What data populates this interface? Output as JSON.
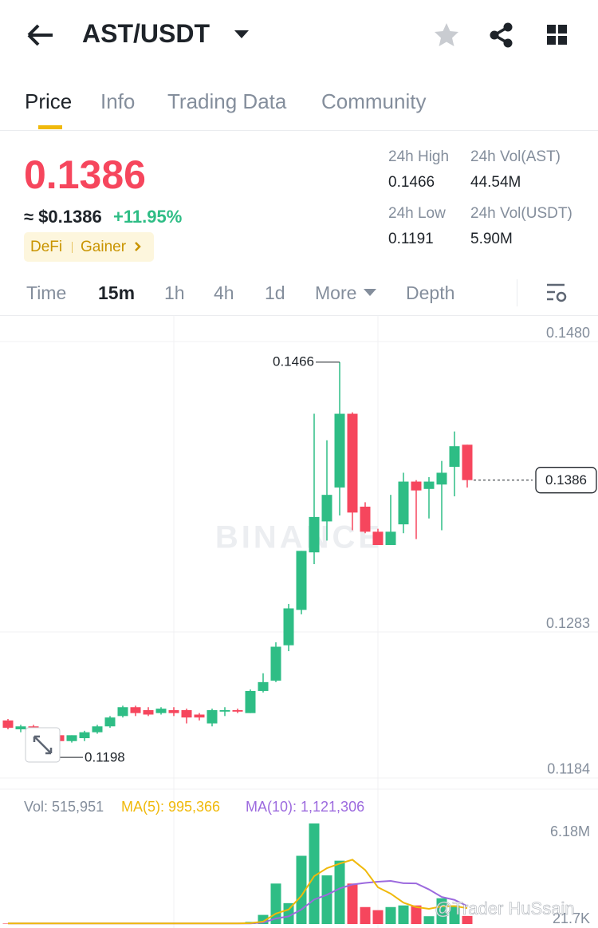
{
  "header": {
    "pair": "AST/USDT"
  },
  "tabs": [
    "Price",
    "Info",
    "Trading Data",
    "Community"
  ],
  "price": {
    "last": "0.1386",
    "usd": "≈ $0.1386",
    "change": "+11.95%",
    "tags": [
      "DeFi",
      "Gainer"
    ]
  },
  "stats": [
    {
      "label": "24h High",
      "value": "0.1466"
    },
    {
      "label": "24h Vol(AST)",
      "value": "44.54M"
    },
    {
      "label": "24h Low",
      "value": "0.1191"
    },
    {
      "label": "24h Vol(USDT)",
      "value": "5.90M"
    }
  ],
  "intervals": [
    "Time",
    "15m",
    "1h",
    "4h",
    "1d",
    "More",
    "Depth"
  ],
  "chart_data": {
    "type": "candlestick",
    "watermark": "BINANCE",
    "credit": "@Trader HuSsain",
    "ylim": [
      0.11764,
      0.148
    ],
    "yticks": [
      {
        "value": 0.148,
        "label": "0.1480"
      },
      0.1283,
      0.1184
    ],
    "up_color": "#2ebd85",
    "down_color": "#f6465d",
    "open": [
      0.1223,
      0.1217,
      0.1219,
      0.1214,
      0.1213,
      0.1209,
      0.1211,
      0.1215,
      0.1219,
      0.1226,
      0.1232,
      0.123,
      0.1228,
      0.123,
      0.123,
      0.1227,
      0.1221,
      0.1229,
      0.123,
      0.1228,
      0.1243,
      0.125,
      0.1274,
      0.1298,
      0.1337,
      0.1358,
      0.1381,
      0.1431,
      0.1368,
      0.1351,
      0.1342,
      0.1356,
      0.1385,
      0.138,
      0.1383,
      0.1395,
      0.141
    ],
    "high": [
      0.1224,
      0.122,
      0.122,
      0.1216,
      0.1214,
      0.1213,
      0.1216,
      0.122,
      0.1226,
      0.1233,
      0.1233,
      0.1232,
      0.1232,
      0.1232,
      0.1231,
      0.1228,
      0.1231,
      0.1232,
      0.1231,
      0.1244,
      0.1255,
      0.1276,
      0.1302,
      0.1338,
      0.1431,
      0.1413,
      0.1466,
      0.1432,
      0.1371,
      0.1353,
      0.1376,
      0.1391,
      0.1386,
      0.1388,
      0.1399,
      0.1419,
      0.141
    ],
    "low": [
      0.1217,
      0.1215,
      0.1213,
      0.121,
      0.1198,
      0.1208,
      0.1209,
      0.1214,
      0.1218,
      0.1225,
      0.1226,
      0.1226,
      0.1227,
      0.1226,
      0.1221,
      0.1223,
      0.1219,
      0.1226,
      0.1228,
      0.1228,
      0.1242,
      0.1249,
      0.127,
      0.1295,
      0.1329,
      0.1345,
      0.1362,
      0.1352,
      0.135,
      0.1342,
      0.1342,
      0.135,
      0.1346,
      0.136,
      0.1352,
      0.1375,
      0.1381
    ],
    "close": [
      0.1218,
      0.1219,
      0.1214,
      0.1212,
      0.1209,
      0.1213,
      0.1215,
      0.1219,
      0.1225,
      0.1232,
      0.1228,
      0.1227,
      0.1231,
      0.1228,
      0.1225,
      0.1225,
      0.123,
      0.123,
      0.1229,
      0.1243,
      0.1249,
      0.1273,
      0.1299,
      0.1338,
      0.1361,
      0.1376,
      0.1431,
      0.1364,
      0.1351,
      0.1342,
      0.1351,
      0.1385,
      0.1379,
      0.1385,
      0.1391,
      0.1409,
      0.1386
    ],
    "volume": {
      "legend": [
        "Vol: 515,951",
        "MA(5): 995,366",
        "MA(10): 1,121,306"
      ],
      "ma5_color": "#f0b90b",
      "ma10_color": "#9c6ade",
      "ylim": [
        21700,
        6180000
      ],
      "yticks": [
        {
          "value": 6180000,
          "label": "6.18M"
        },
        {
          "value": 21700,
          "label": "21.7K"
        }
      ],
      "values": [
        50000,
        40000,
        60000,
        50000,
        80000,
        60000,
        50000,
        70000,
        60000,
        80000,
        50000,
        40000,
        50000,
        40000,
        60000,
        40000,
        70000,
        50000,
        40000,
        150000,
        580000,
        2500000,
        1300000,
        4200000,
        6180000,
        3000000,
        3900000,
        2500000,
        1060000,
        870000,
        1060000,
        1160000,
        1160000,
        500000,
        1600000,
        1160000,
        515951
      ],
      "ma5": [
        60000,
        60000,
        60000,
        60000,
        60000,
        60000,
        60000,
        60000,
        60000,
        60000,
        60000,
        60000,
        60000,
        60000,
        60000,
        60000,
        60000,
        60000,
        60000,
        78000,
        170000,
        660000,
        910000,
        1750000,
        2950000,
        3440000,
        3720000,
        3960000,
        3330000,
        2270000,
        1880000,
        1330000,
        1060000,
        950000,
        1100000,
        1120000,
        995366
      ],
      "ma10": [
        60000,
        60000,
        60000,
        60000,
        60000,
        60000,
        60000,
        60000,
        60000,
        60000,
        60000,
        60000,
        60000,
        60000,
        60000,
        60000,
        60000,
        60000,
        60000,
        60000,
        110000,
        360000,
        490000,
        910000,
        1520000,
        1810000,
        2200000,
        2440000,
        2540000,
        2610000,
        2660000,
        2520000,
        2510000,
        2140000,
        1680000,
        1500000,
        1121306
      ]
    }
  }
}
